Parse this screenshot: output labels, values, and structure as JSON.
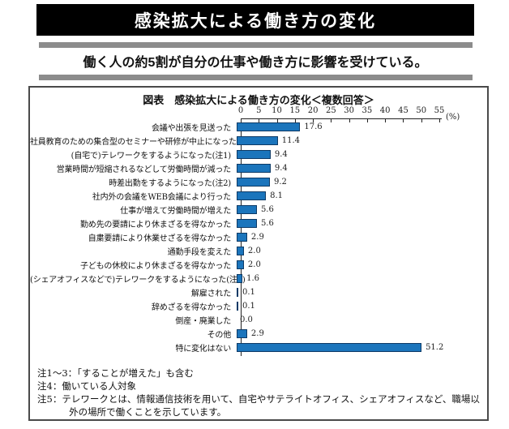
{
  "page": {
    "banner_title": "感染拡大による働き方の変化",
    "subtitle": "働く人の約5割が自分の仕事や働き方に影響を受けている。"
  },
  "figure": {
    "title": "図表　感染拡大による働き方の変化＜複数回答＞",
    "unit_label": "(%)",
    "notes": [
      "注1～3：「することが増えた」も含む",
      "注4：働いている人対象",
      "注5：テレワークとは、情報通信技術を用いて、自宅やサテライトオフィス、シェアオフィスなど、職場以外の場所で働くことを示しています。"
    ]
  },
  "chart_data": {
    "type": "bar",
    "orientation": "horizontal",
    "title": "図表　感染拡大による働き方の変化＜複数回答＞",
    "categories": [
      "会議や出張を見送った",
      "社員教育のための集合型のセミナーや研修が中止になった",
      "(自宅で)テレワークをするようになった(注1)",
      "営業時間が短縮されるなどして労働時間が減った",
      "時差出勤をするようになった(注2)",
      "社内外の会議をWEB会議により行った",
      "仕事が増えて労働時間が増えた",
      "勤め先の要請により休まざるを得なかった",
      "自粛要請により休業せざるを得なかった",
      "通勤手段を変えた",
      "子どもの休校により休まざるを得なかった",
      "(シェアオフィスなどで)テレワークをするようになった(注3)",
      "解雇された",
      "辞めざるを得なかった",
      "倒産・廃業した",
      "その他",
      "特に変化はない"
    ],
    "values": [
      17.6,
      11.4,
      9.4,
      9.4,
      9.2,
      8.1,
      5.6,
      5.6,
      2.9,
      2.0,
      2.0,
      1.6,
      0.1,
      0.1,
      0.0,
      2.9,
      51.2
    ],
    "xlim": [
      0,
      55
    ],
    "xticks": [
      0,
      5,
      10,
      15,
      20,
      25,
      30,
      35,
      40,
      45,
      50,
      55
    ],
    "unit": "%",
    "grid": false,
    "legend": null,
    "bar_color": "#1b75bc"
  },
  "colors": {
    "banner_bg": "#000000",
    "banner_text": "#ffffff",
    "rule_gray": "#8c8c8c",
    "bar_fill": "#1b75bc",
    "bar_border": "#0d3a66",
    "box_border": "#4a4a4a"
  }
}
